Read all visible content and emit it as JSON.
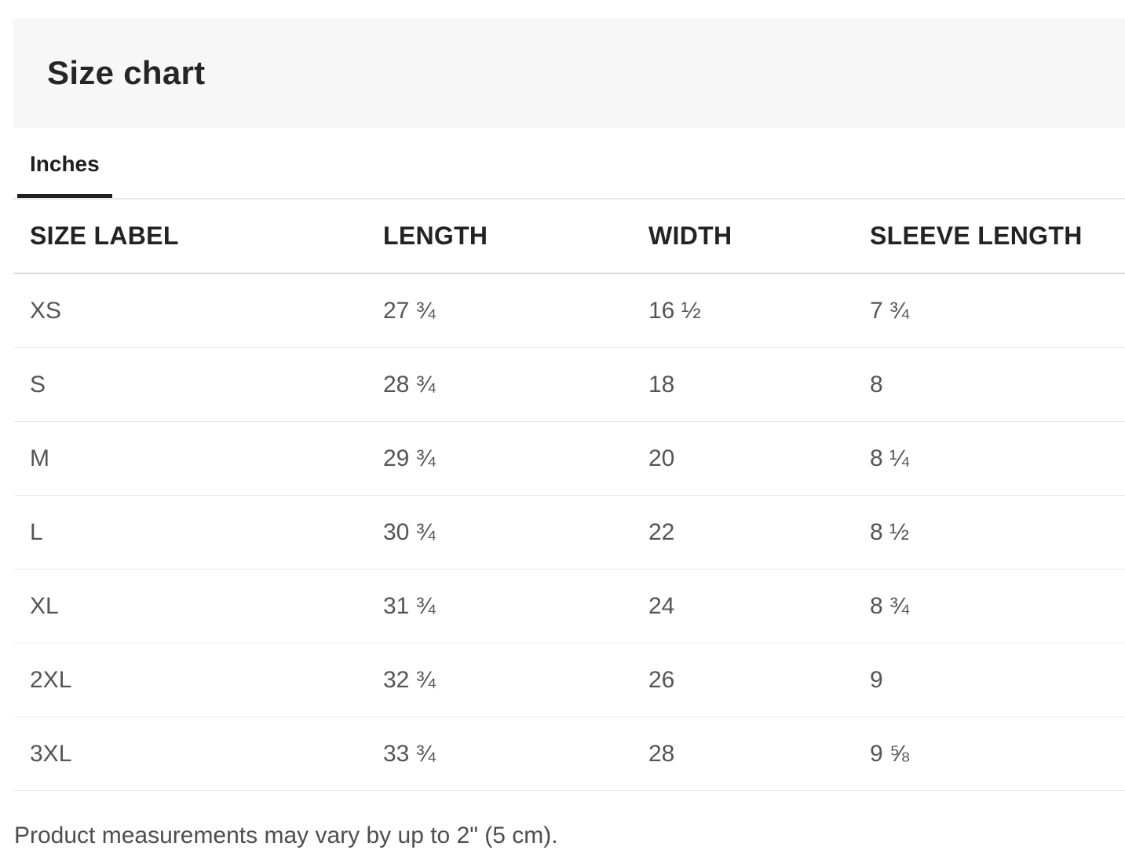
{
  "header": {
    "title": "Size chart"
  },
  "tabs": {
    "items": [
      {
        "label": "Inches",
        "active": true
      }
    ]
  },
  "table": {
    "columns": [
      "SIZE LABEL",
      "LENGTH",
      "WIDTH",
      "SLEEVE LENGTH"
    ],
    "rows": [
      {
        "size": "XS",
        "length": "27 ¾",
        "width": "16 ½",
        "sleeve": "7 ¾"
      },
      {
        "size": "S",
        "length": "28 ¾",
        "width": "18",
        "sleeve": "8"
      },
      {
        "size": "M",
        "length": "29 ¾",
        "width": "20",
        "sleeve": "8 ¼"
      },
      {
        "size": "L",
        "length": "30 ¾",
        "width": "22",
        "sleeve": "8 ½"
      },
      {
        "size": "XL",
        "length": "31 ¾",
        "width": "24",
        "sleeve": "8 ¾"
      },
      {
        "size": "2XL",
        "length": "32 ¾",
        "width": "26",
        "sleeve": "9"
      },
      {
        "size": "3XL",
        "length": "33 ¾",
        "width": "28",
        "sleeve": "9 ⅝"
      }
    ]
  },
  "footer": {
    "note": "Product measurements may vary by up to 2\" (5 cm)."
  },
  "colors": {
    "band_bg": "#f7f7f7",
    "text_dark": "#232323",
    "text_gray": "#555555",
    "tab_underline": "#1f1f1f",
    "header_border": "#d9d9d9",
    "row_divider": "#e9e9e9"
  }
}
